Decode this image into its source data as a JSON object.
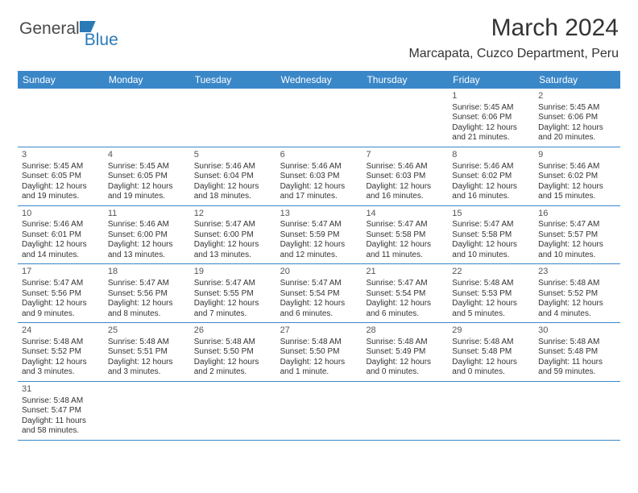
{
  "brand": {
    "part1": "General",
    "part2": "Blue"
  },
  "title": "March 2024",
  "location": "Marcapata, Cuzco Department, Peru",
  "day_headers": [
    "Sunday",
    "Monday",
    "Tuesday",
    "Wednesday",
    "Thursday",
    "Friday",
    "Saturday"
  ],
  "header_bg": "#3a87c8",
  "header_fg": "#ffffff",
  "first_day_index": 5,
  "days": [
    {
      "n": 1,
      "sunrise": "5:45 AM",
      "sunset": "6:06 PM",
      "daylight": "12 hours and 21 minutes."
    },
    {
      "n": 2,
      "sunrise": "5:45 AM",
      "sunset": "6:06 PM",
      "daylight": "12 hours and 20 minutes."
    },
    {
      "n": 3,
      "sunrise": "5:45 AM",
      "sunset": "6:05 PM",
      "daylight": "12 hours and 19 minutes."
    },
    {
      "n": 4,
      "sunrise": "5:45 AM",
      "sunset": "6:05 PM",
      "daylight": "12 hours and 19 minutes."
    },
    {
      "n": 5,
      "sunrise": "5:46 AM",
      "sunset": "6:04 PM",
      "daylight": "12 hours and 18 minutes."
    },
    {
      "n": 6,
      "sunrise": "5:46 AM",
      "sunset": "6:03 PM",
      "daylight": "12 hours and 17 minutes."
    },
    {
      "n": 7,
      "sunrise": "5:46 AM",
      "sunset": "6:03 PM",
      "daylight": "12 hours and 16 minutes."
    },
    {
      "n": 8,
      "sunrise": "5:46 AM",
      "sunset": "6:02 PM",
      "daylight": "12 hours and 16 minutes."
    },
    {
      "n": 9,
      "sunrise": "5:46 AM",
      "sunset": "6:02 PM",
      "daylight": "12 hours and 15 minutes."
    },
    {
      "n": 10,
      "sunrise": "5:46 AM",
      "sunset": "6:01 PM",
      "daylight": "12 hours and 14 minutes."
    },
    {
      "n": 11,
      "sunrise": "5:46 AM",
      "sunset": "6:00 PM",
      "daylight": "12 hours and 13 minutes."
    },
    {
      "n": 12,
      "sunrise": "5:47 AM",
      "sunset": "6:00 PM",
      "daylight": "12 hours and 13 minutes."
    },
    {
      "n": 13,
      "sunrise": "5:47 AM",
      "sunset": "5:59 PM",
      "daylight": "12 hours and 12 minutes."
    },
    {
      "n": 14,
      "sunrise": "5:47 AM",
      "sunset": "5:58 PM",
      "daylight": "12 hours and 11 minutes."
    },
    {
      "n": 15,
      "sunrise": "5:47 AM",
      "sunset": "5:58 PM",
      "daylight": "12 hours and 10 minutes."
    },
    {
      "n": 16,
      "sunrise": "5:47 AM",
      "sunset": "5:57 PM",
      "daylight": "12 hours and 10 minutes."
    },
    {
      "n": 17,
      "sunrise": "5:47 AM",
      "sunset": "5:56 PM",
      "daylight": "12 hours and 9 minutes."
    },
    {
      "n": 18,
      "sunrise": "5:47 AM",
      "sunset": "5:56 PM",
      "daylight": "12 hours and 8 minutes."
    },
    {
      "n": 19,
      "sunrise": "5:47 AM",
      "sunset": "5:55 PM",
      "daylight": "12 hours and 7 minutes."
    },
    {
      "n": 20,
      "sunrise": "5:47 AM",
      "sunset": "5:54 PM",
      "daylight": "12 hours and 6 minutes."
    },
    {
      "n": 21,
      "sunrise": "5:47 AM",
      "sunset": "5:54 PM",
      "daylight": "12 hours and 6 minutes."
    },
    {
      "n": 22,
      "sunrise": "5:48 AM",
      "sunset": "5:53 PM",
      "daylight": "12 hours and 5 minutes."
    },
    {
      "n": 23,
      "sunrise": "5:48 AM",
      "sunset": "5:52 PM",
      "daylight": "12 hours and 4 minutes."
    },
    {
      "n": 24,
      "sunrise": "5:48 AM",
      "sunset": "5:52 PM",
      "daylight": "12 hours and 3 minutes."
    },
    {
      "n": 25,
      "sunrise": "5:48 AM",
      "sunset": "5:51 PM",
      "daylight": "12 hours and 3 minutes."
    },
    {
      "n": 26,
      "sunrise": "5:48 AM",
      "sunset": "5:50 PM",
      "daylight": "12 hours and 2 minutes."
    },
    {
      "n": 27,
      "sunrise": "5:48 AM",
      "sunset": "5:50 PM",
      "daylight": "12 hours and 1 minute."
    },
    {
      "n": 28,
      "sunrise": "5:48 AM",
      "sunset": "5:49 PM",
      "daylight": "12 hours and 0 minutes."
    },
    {
      "n": 29,
      "sunrise": "5:48 AM",
      "sunset": "5:48 PM",
      "daylight": "12 hours and 0 minutes."
    },
    {
      "n": 30,
      "sunrise": "5:48 AM",
      "sunset": "5:48 PM",
      "daylight": "11 hours and 59 minutes."
    },
    {
      "n": 31,
      "sunrise": "5:48 AM",
      "sunset": "5:47 PM",
      "daylight": "11 hours and 58 minutes."
    }
  ],
  "labels": {
    "sunrise": "Sunrise:",
    "sunset": "Sunset:",
    "daylight": "Daylight:"
  }
}
